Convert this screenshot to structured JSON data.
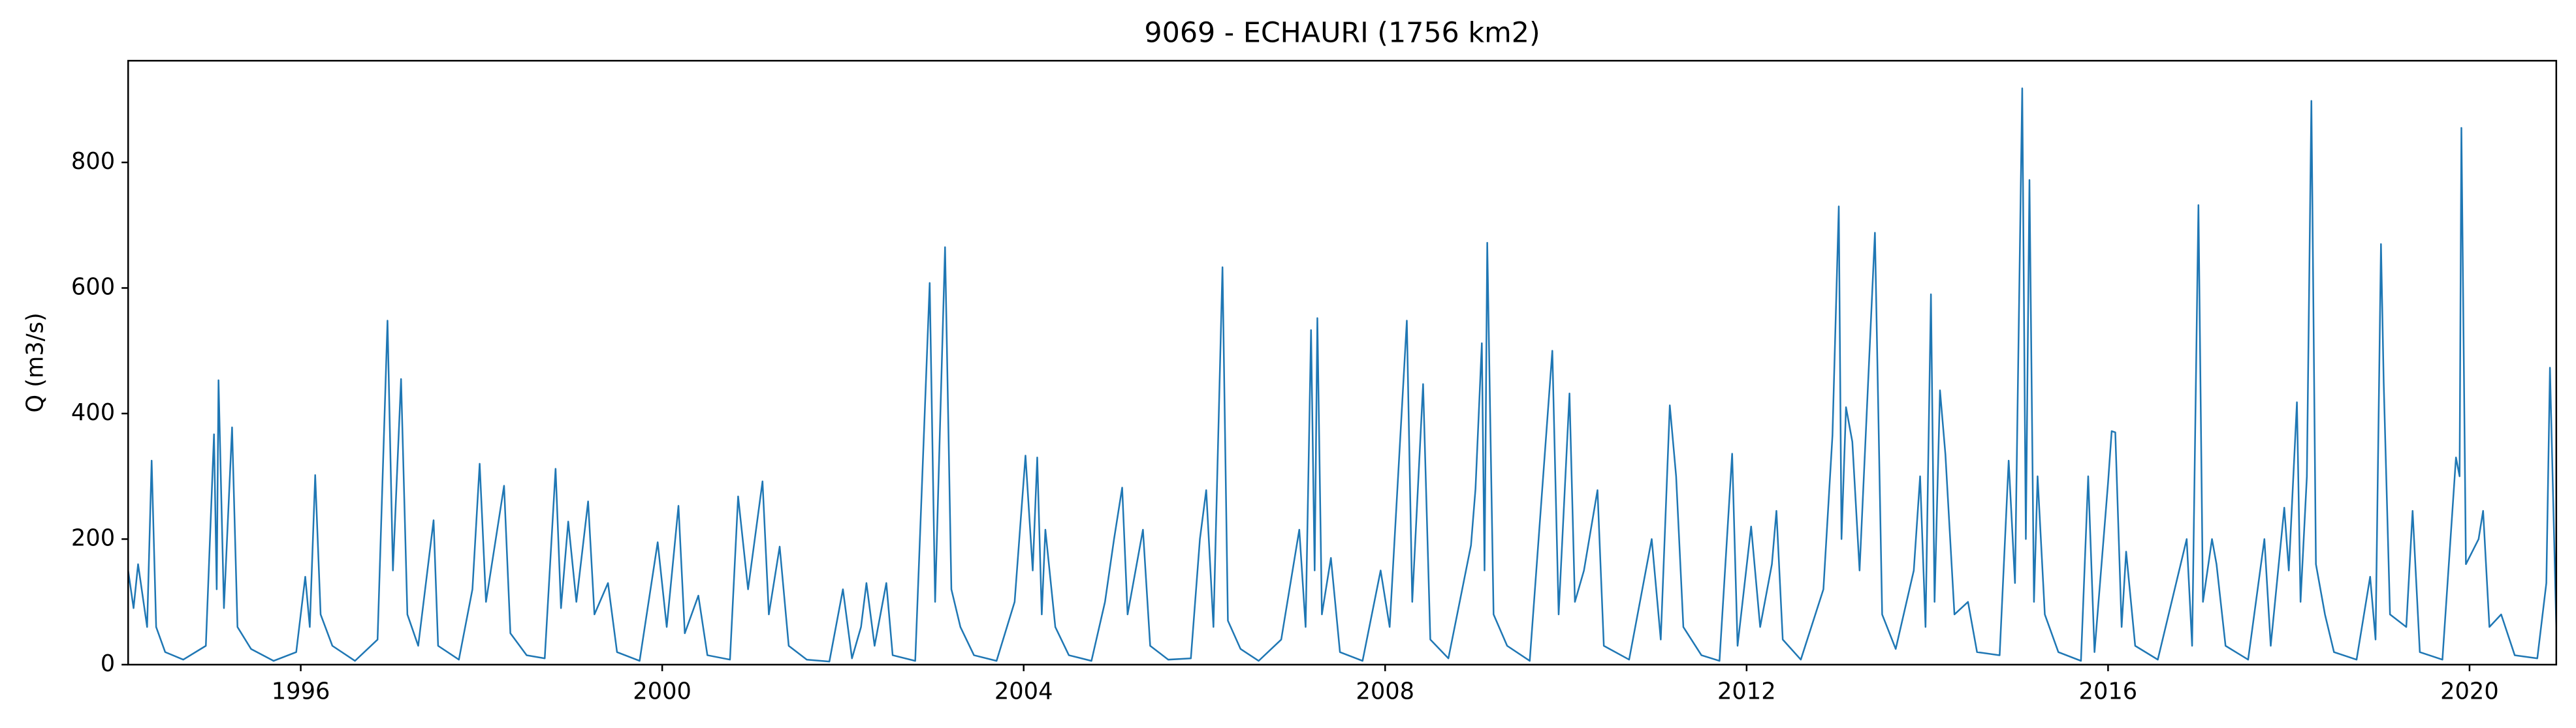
{
  "chart_data": {
    "type": "line",
    "title": "9069 - ECHAURI (1756 km2)",
    "y_label": "Q (m3/s)",
    "x": [
      1994.09,
      1994.15,
      1994.2,
      1994.3,
      1994.35,
      1994.4,
      1994.5,
      1994.7,
      1994.95,
      1995.04,
      1995.07,
      1995.09,
      1995.15,
      1995.24,
      1995.3,
      1995.45,
      1995.7,
      1995.95,
      1996.05,
      1996.1,
      1996.16,
      1996.22,
      1996.35,
      1996.6,
      1996.85,
      1996.96,
      1997.02,
      1997.11,
      1997.18,
      1997.3,
      1997.47,
      1997.52,
      1997.75,
      1997.9,
      1997.98,
      1998.05,
      1998.25,
      1998.32,
      1998.5,
      1998.7,
      1998.82,
      1998.88,
      1998.96,
      1999.05,
      1999.18,
      1999.25,
      1999.4,
      1999.5,
      1999.75,
      1999.95,
      2000.05,
      2000.18,
      2000.25,
      2000.4,
      2000.5,
      2000.75,
      2000.84,
      2000.95,
      2001.11,
      2001.18,
      2001.3,
      2001.4,
      2001.6,
      2001.85,
      2002.0,
      2002.1,
      2002.2,
      2002.26,
      2002.35,
      2002.48,
      2002.55,
      2002.8,
      2002.96,
      2003.02,
      2003.13,
      2003.2,
      2003.3,
      2003.45,
      2003.7,
      2003.9,
      2004.02,
      2004.1,
      2004.15,
      2004.2,
      2004.24,
      2004.35,
      2004.5,
      2004.75,
      2004.9,
      2005.0,
      2005.09,
      2005.15,
      2005.32,
      2005.4,
      2005.6,
      2005.85,
      2005.95,
      2006.02,
      2006.1,
      2006.2,
      2006.26,
      2006.4,
      2006.6,
      2006.85,
      2007.05,
      2007.12,
      2007.18,
      2007.22,
      2007.25,
      2007.3,
      2007.4,
      2007.5,
      2007.75,
      2007.95,
      2008.05,
      2008.24,
      2008.3,
      2008.42,
      2008.5,
      2008.7,
      2008.95,
      2009.0,
      2009.07,
      2009.1,
      2009.13,
      2009.2,
      2009.35,
      2009.6,
      2009.85,
      2009.92,
      2010.04,
      2010.1,
      2010.2,
      2010.35,
      2010.42,
      2010.7,
      2010.95,
      2011.05,
      2011.15,
      2011.22,
      2011.3,
      2011.5,
      2011.7,
      2011.84,
      2011.9,
      2012.05,
      2012.15,
      2012.28,
      2012.33,
      2012.4,
      2012.6,
      2012.85,
      2012.95,
      2013.02,
      2013.05,
      2013.1,
      2013.17,
      2013.25,
      2013.42,
      2013.5,
      2013.65,
      2013.85,
      2013.92,
      2013.98,
      2014.04,
      2014.08,
      2014.14,
      2014.2,
      2014.3,
      2014.45,
      2014.55,
      2014.8,
      2014.9,
      2014.97,
      2015.05,
      2015.09,
      2015.13,
      2015.18,
      2015.22,
      2015.3,
      2015.45,
      2015.7,
      2015.78,
      2015.85,
      2016.0,
      2016.04,
      2016.08,
      2016.15,
      2016.2,
      2016.3,
      2016.55,
      2016.87,
      2016.93,
      2017.0,
      2017.05,
      2017.15,
      2017.2,
      2017.3,
      2017.55,
      2017.73,
      2017.8,
      2017.95,
      2018.0,
      2018.09,
      2018.13,
      2018.2,
      2018.25,
      2018.3,
      2018.4,
      2018.5,
      2018.75,
      2018.9,
      2018.96,
      2019.02,
      2019.05,
      2019.12,
      2019.3,
      2019.37,
      2019.45,
      2019.7,
      2019.85,
      2019.89,
      2019.91,
      2019.96,
      2020.1,
      2020.15,
      2020.22,
      2020.35,
      2020.5,
      2020.75,
      2020.85,
      2020.89,
      2020.96
    ],
    "series": [
      {
        "color": "#1f77b4",
        "values": [
          150,
          90,
          160,
          60,
          325,
          60,
          20,
          8,
          30,
          367,
          120,
          453,
          90,
          378,
          60,
          25,
          6,
          20,
          140,
          60,
          302,
          80,
          30,
          6,
          40,
          548,
          150,
          455,
          80,
          30,
          230,
          30,
          8,
          120,
          320,
          100,
          285,
          50,
          15,
          10,
          312,
          90,
          228,
          100,
          260,
          80,
          130,
          20,
          6,
          195,
          60,
          253,
          50,
          110,
          15,
          8,
          268,
          120,
          292,
          80,
          188,
          30,
          8,
          5,
          120,
          10,
          60,
          130,
          30,
          130,
          15,
          6,
          608,
          100,
          665,
          120,
          60,
          15,
          6,
          100,
          333,
          150,
          330,
          80,
          215,
          60,
          15,
          6,
          100,
          200,
          282,
          80,
          215,
          30,
          8,
          10,
          200,
          278,
          60,
          633,
          70,
          25,
          6,
          40,
          215,
          60,
          533,
          150,
          552,
          80,
          170,
          20,
          6,
          150,
          60,
          548,
          100,
          447,
          40,
          10,
          190,
          280,
          512,
          150,
          672,
          80,
          30,
          6,
          500,
          80,
          432,
          100,
          150,
          278,
          30,
          8,
          200,
          40,
          413,
          300,
          60,
          15,
          6,
          336,
          30,
          220,
          60,
          160,
          245,
          40,
          8,
          120,
          365,
          730,
          200,
          410,
          355,
          150,
          688,
          80,
          25,
          150,
          300,
          60,
          590,
          100,
          437,
          335,
          80,
          100,
          20,
          15,
          325,
          130,
          918,
          200,
          772,
          100,
          300,
          80,
          20,
          6,
          300,
          20,
          290,
          372,
          370,
          60,
          180,
          30,
          8,
          200,
          30,
          732,
          100,
          200,
          160,
          30,
          8,
          200,
          30,
          250,
          150,
          418,
          100,
          300,
          898,
          160,
          80,
          20,
          8,
          140,
          40,
          670,
          450,
          80,
          60,
          245,
          20,
          8,
          330,
          300,
          855,
          160,
          200,
          245,
          60,
          80,
          15,
          10,
          130,
          473,
          60
        ]
      }
    ],
    "xlim": [
      1994.09,
      2020.96
    ],
    "xticks": [
      1996,
      2000,
      2004,
      2008,
      2012,
      2016,
      2020
    ],
    "ylim": [
      0,
      962
    ],
    "yticks": [
      0,
      200,
      400,
      600,
      800
    ]
  }
}
